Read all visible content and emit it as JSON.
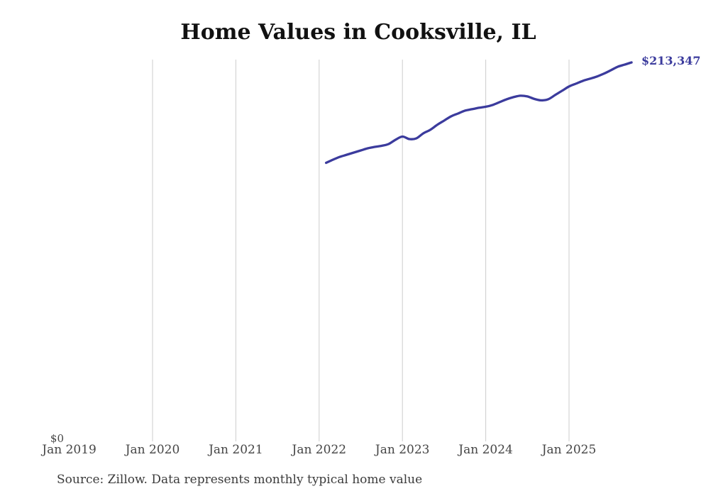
{
  "title": "Home Values in Cooksville, IL",
  "source_note": "Source: Zillow. Data represents monthly typical home value",
  "colors": {
    "line": "#3b3b9d",
    "grid": "#cccccc",
    "title_text": "#111111",
    "axis_text": "#454545",
    "note_text": "#3b3b3b",
    "background": "#ffffff"
  },
  "chart_data": {
    "type": "line",
    "title": "Home Values in Cooksville, IL",
    "xlabel": "",
    "ylabel": "",
    "x_tick_labels": [
      "Jan 2019",
      "Jan 2020",
      "Jan 2021",
      "Jan 2022",
      "Jan 2023",
      "Jan 2024",
      "Jan 2025"
    ],
    "y_tick_labels": [
      "$0"
    ],
    "ylim": [
      0,
      215000
    ],
    "grid": "vertical-gridlines-only",
    "legend": "none",
    "end_annotation": "$213,347",
    "series": [
      {
        "name": "Monthly typical home value",
        "months": [
          "2022-02",
          "2022-03",
          "2022-04",
          "2022-05",
          "2022-06",
          "2022-07",
          "2022-08",
          "2022-09",
          "2022-10",
          "2022-11",
          "2022-12",
          "2023-01",
          "2023-02",
          "2023-03",
          "2023-04",
          "2023-05",
          "2023-06",
          "2023-07",
          "2023-08",
          "2023-09",
          "2023-10",
          "2023-11",
          "2023-12",
          "2024-01",
          "2024-02",
          "2024-03",
          "2024-04",
          "2024-05",
          "2024-06",
          "2024-07",
          "2024-08",
          "2024-09",
          "2024-10",
          "2024-11",
          "2024-12",
          "2025-01",
          "2025-02",
          "2025-03",
          "2025-04",
          "2025-05",
          "2025-06",
          "2025-07",
          "2025-08",
          "2025-09",
          "2025-10"
        ],
        "values": [
          156800,
          158600,
          160200,
          161400,
          162600,
          163800,
          165000,
          165800,
          166400,
          167400,
          169800,
          171600,
          170200,
          170600,
          173400,
          175400,
          178200,
          180600,
          183000,
          184600,
          186200,
          187000,
          187800,
          188400,
          189400,
          191000,
          192600,
          193800,
          194600,
          194200,
          192800,
          192000,
          192600,
          195000,
          197400,
          199800,
          201400,
          203000,
          204200,
          205400,
          207000,
          208900,
          210900,
          212100,
          213347
        ]
      }
    ]
  }
}
